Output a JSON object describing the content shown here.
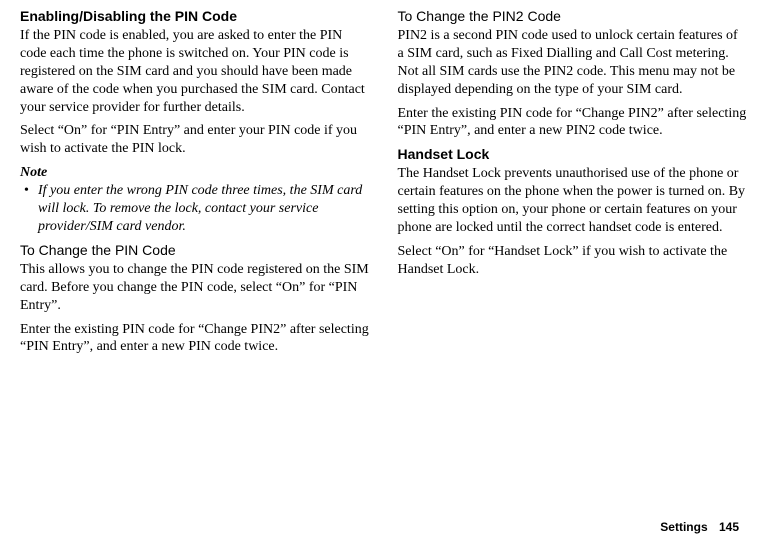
{
  "left": {
    "h1": "Enabling/Disabling the PIN Code",
    "p1": "If the PIN code is enabled, you are asked to enter the PIN code each time the phone is switched on. Your PIN code is registered on the SIM card and you should have been made aware of the code when you purchased the SIM card. Contact your service provider for further details.",
    "p2": "Select “On” for “PIN Entry” and enter your PIN code if you wish to activate the PIN lock.",
    "note_label": "Note",
    "note_item": "If you enter the wrong PIN code three times, the SIM card will lock. To remove the lock, contact your service provider/SIM card vendor.",
    "h2": "To Change the PIN Code",
    "p3": "This allows you to change the PIN code registered on the SIM card. Before you change the PIN code, select “On” for “PIN Entry”.",
    "p4": "Enter the existing PIN code for “Change PIN2” after selecting “PIN Entry”, and enter a new PIN code twice."
  },
  "right": {
    "h1": "To Change the PIN2 Code",
    "p1": "PIN2 is a second PIN code used to unlock certain features of a SIM card, such as Fixed Dialling and Call Cost metering. Not all SIM cards use the PIN2 code. This menu may not be displayed depending on the type of your SIM card.",
    "p2": "Enter the existing PIN code for “Change PIN2” after selecting “PIN Entry”, and enter a new PIN2 code twice.",
    "h2": "Handset Lock",
    "p3": "The Handset Lock prevents unauthorised use of the phone or certain features on the phone when the power is turned on. By setting this option on, your phone or certain features on your phone are locked until the correct handset code is entered.",
    "p4": "Select “On” for “Handset Lock” if you wish to activate the Handset Lock."
  },
  "footer": {
    "label": "Settings",
    "page": "145"
  }
}
